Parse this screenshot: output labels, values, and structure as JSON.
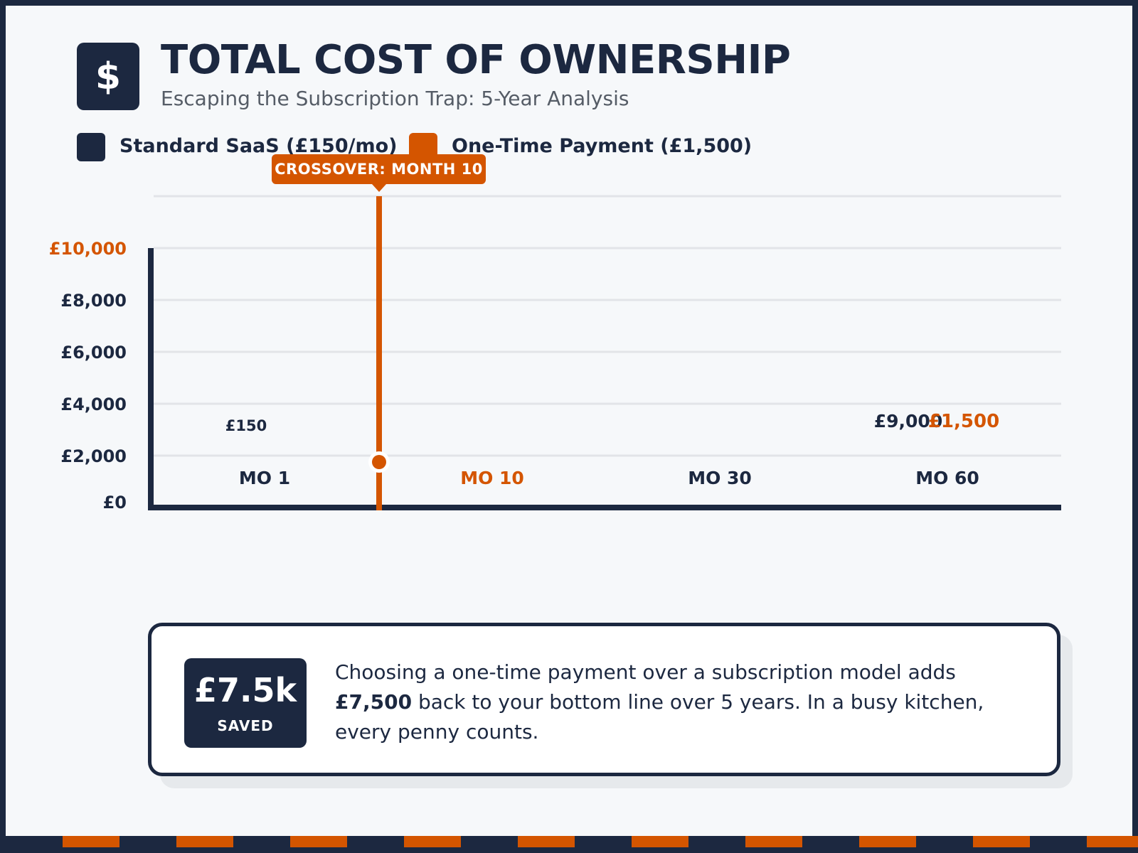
{
  "header": {
    "icon": "dollar-sign-icon",
    "icon_glyph": "$",
    "title": "TOTAL COST OF OWNERSHIP",
    "subtitle": "Escaping the Subscription Trap: 5-Year Analysis"
  },
  "legend": [
    {
      "label": "Standard SaaS (£150/mo)",
      "color": "#1c2840"
    },
    {
      "label": "One-Time Payment (£1,500)",
      "color": "#d45500"
    }
  ],
  "callout": {
    "label": "CROSSOVER: MONTH 10",
    "month": 10
  },
  "chart_data": {
    "type": "line",
    "y_ticks": [
      "£0",
      "£2,000",
      "£4,000",
      "£6,000",
      "£8,000",
      "£10,000"
    ],
    "ylim": [
      0,
      10000
    ],
    "highlighted_y_tick": "£10,000",
    "grid": true,
    "x_labels": [
      "MO 1",
      "MO 10",
      "MO 30",
      "MO 60"
    ],
    "highlighted_x_label": "MO 10",
    "data_labels": [
      {
        "text": "£150",
        "series": "Standard SaaS (£150/mo)"
      },
      {
        "text": "£9,000",
        "series": "Standard SaaS (£150/mo)"
      },
      {
        "text": "£1,500",
        "series": "One-Time Payment (£1,500)"
      }
    ],
    "crossover_month": 10
  },
  "summary": {
    "saved_value": "£7.5k",
    "saved_label": "SAVED",
    "text_before": "Choosing a one-time payment over a subscription model adds ",
    "text_bold": "£7,500",
    "text_after": " back to your bottom line over 5 years. In a busy kitchen, every penny counts."
  },
  "colors": {
    "navy": "#1c2840",
    "orange": "#d45500",
    "grid": "#e2e4e8",
    "background": "#f6f8fa"
  }
}
